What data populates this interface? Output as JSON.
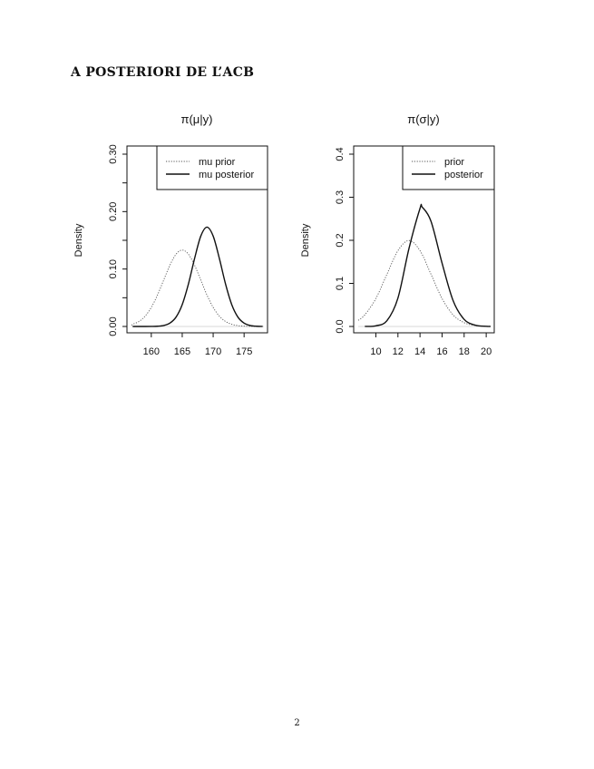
{
  "section_heading": "A POSTERIORI DE L’ACB",
  "page_number": "2",
  "chart_data": [
    {
      "type": "line",
      "title": "π(μ|y)",
      "xlabel": "",
      "ylabel": "Density",
      "xlim": [
        156.8,
        178.2
      ],
      "ylim": [
        0,
        0.3
      ],
      "xticks": [
        160,
        165,
        170,
        175
      ],
      "xtick_labels": [
        "160",
        "165",
        "170",
        "175"
      ],
      "yticks": [
        0,
        0.05,
        0.1,
        0.15,
        0.2,
        0.25,
        0.3
      ],
      "ytick_labels": [
        "0.00",
        "",
        "0.10",
        "",
        "0.20",
        "",
        "0.30"
      ],
      "legend_position": "top-right",
      "series": [
        {
          "name": "mu prior",
          "style": "dotted",
          "x": [
            156.8,
            157,
            158,
            159,
            160,
            161,
            162,
            163,
            164,
            165,
            166,
            167,
            168,
            169,
            170,
            171,
            172,
            173,
            174,
            175,
            176,
            177,
            178
          ],
          "y": [
            0.002,
            0.0038,
            0.0087,
            0.018,
            0.0332,
            0.0547,
            0.0807,
            0.1065,
            0.1258,
            0.133,
            0.1258,
            0.1065,
            0.0807,
            0.0547,
            0.0332,
            0.018,
            0.0087,
            0.0038,
            0.0015,
            0.0005,
            0.0002,
            0.0001,
            0.0
          ]
        },
        {
          "name": "mu posterior",
          "style": "solid",
          "x": [
            157,
            158,
            159,
            160,
            161,
            162,
            163,
            164,
            165,
            166,
            167,
            168,
            169,
            170,
            171,
            172,
            173,
            174,
            175,
            176,
            177,
            178
          ],
          "y": [
            0.0,
            0.0,
            0.0,
            0.0001,
            0.0004,
            0.0017,
            0.0058,
            0.0163,
            0.0381,
            0.0739,
            0.1185,
            0.1574,
            0.173,
            0.1574,
            0.1185,
            0.0739,
            0.0381,
            0.0163,
            0.0058,
            0.0017,
            0.0004,
            0.0001
          ]
        }
      ]
    },
    {
      "type": "line",
      "title": "π(σ|y)",
      "xlabel": "",
      "ylabel": "Density",
      "xlim": [
        8.4,
        20.4
      ],
      "ylim": [
        0,
        0.4
      ],
      "xticks": [
        10,
        12,
        14,
        16,
        18,
        20
      ],
      "xtick_labels": [
        "10",
        "12",
        "14",
        "16",
        "18",
        "20"
      ],
      "yticks": [
        0,
        0.1,
        0.2,
        0.3,
        0.4
      ],
      "ytick_labels": [
        "0.0",
        "0.1",
        "0.2",
        "0.3",
        "0.4"
      ],
      "legend_position": "top-right",
      "series": [
        {
          "name": "prior",
          "style": "dotted",
          "x": [
            8.4,
            9,
            10,
            11,
            12,
            13,
            14,
            15,
            16,
            17,
            18,
            19,
            20,
            20.4
          ],
          "y": [
            0.0142,
            0.027,
            0.0648,
            0.121,
            0.176,
            0.1995,
            0.176,
            0.121,
            0.0648,
            0.027,
            0.0088,
            0.0022,
            0.0004,
            0.0002
          ]
        },
        {
          "name": "posterior",
          "style": "solid",
          "x": [
            9,
            10,
            11,
            12,
            13,
            14,
            14.2,
            15,
            16,
            17,
            18,
            19,
            20,
            20.4
          ],
          "y": [
            0.0001,
            0.0015,
            0.0134,
            0.066,
            0.181,
            0.274,
            0.277,
            0.244,
            0.147,
            0.06,
            0.0165,
            0.003,
            0.0004,
            0.0001
          ]
        }
      ]
    }
  ]
}
